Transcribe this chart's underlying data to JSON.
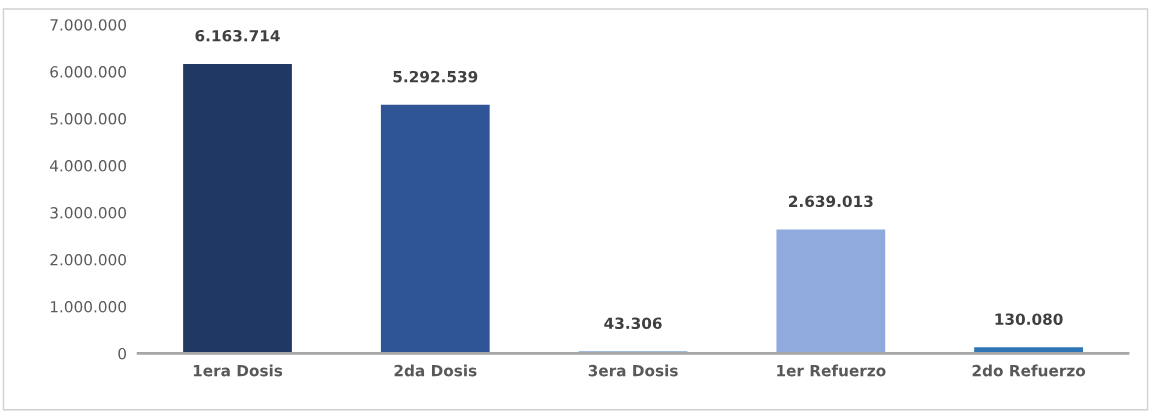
{
  "chart_data": {
    "type": "bar",
    "categories": [
      "1era Dosis",
      "2da Dosis",
      "3era Dosis",
      "1er Refuerzo",
      "2do Refuerzo"
    ],
    "values": [
      6163714,
      5292539,
      43306,
      2639013,
      130080
    ],
    "colors": [
      "#1f3864",
      "#2f5597",
      "#4472c4",
      "#8faadc",
      "#2e75b6"
    ],
    "value_labels": [
      "6.163.714",
      "5.292.539",
      "43.306",
      "2.639.013",
      "130.080"
    ],
    "ylim": [
      0,
      7000000
    ],
    "yticks": [
      {
        "value": 0,
        "label": "0"
      },
      {
        "value": 1000000,
        "label": "1.000.000"
      },
      {
        "value": 2000000,
        "label": "2.000.000"
      },
      {
        "value": 3000000,
        "label": "3.000.000"
      },
      {
        "value": 4000000,
        "label": "4.000.000"
      },
      {
        "value": 5000000,
        "label": "5.000.000"
      },
      {
        "value": 6000000,
        "label": "6.000.000"
      },
      {
        "value": 7000000,
        "label": "7.000.000"
      }
    ],
    "grid": false,
    "legend": false
  }
}
